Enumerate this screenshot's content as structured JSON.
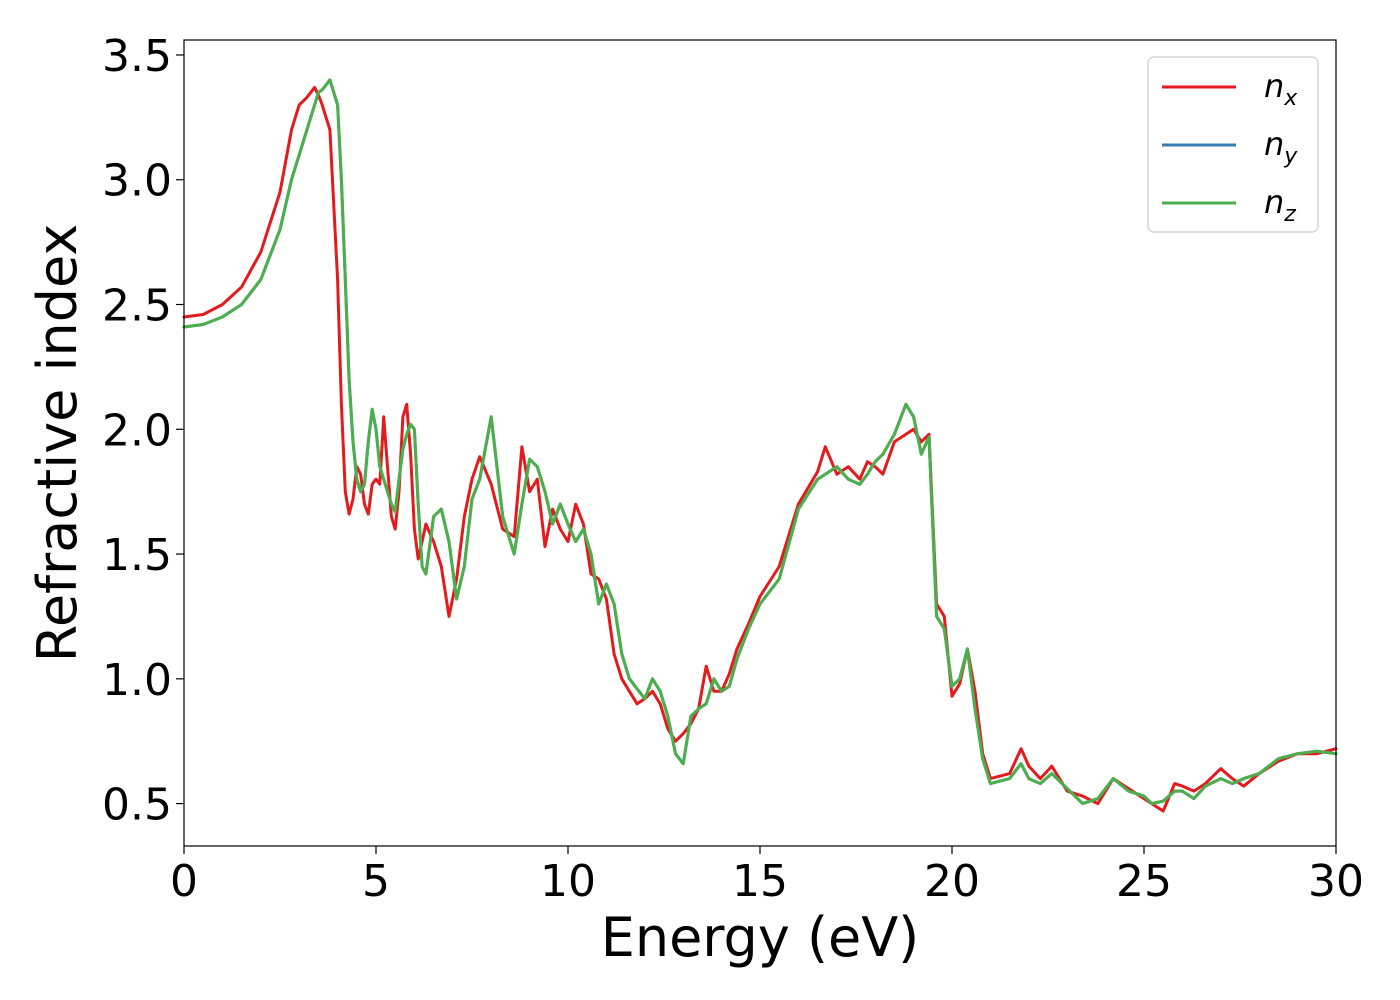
{
  "chart_data": {
    "type": "line",
    "title": "",
    "xlabel": "Energy (eV)",
    "ylabel": "Refractive index",
    "xlim": [
      0,
      30
    ],
    "ylim": [
      0.33,
      3.56
    ],
    "xticks": [
      0,
      5,
      10,
      15,
      20,
      25,
      30
    ],
    "xtick_labels": [
      "0",
      "5",
      "10",
      "15",
      "20",
      "25",
      "30"
    ],
    "yticks": [
      0.5,
      1.0,
      1.5,
      2.0,
      2.5,
      3.0,
      3.5
    ],
    "ytick_labels": [
      "0.5",
      "1.0",
      "1.5",
      "2.0",
      "2.5",
      "3.0",
      "3.5"
    ],
    "grid": false,
    "legend_position": "top-right",
    "series": [
      {
        "name": "n",
        "subscript": "x",
        "color": "#e41a1c",
        "x": [
          0,
          0.5,
          1,
          1.5,
          2,
          2.5,
          2.8,
          3,
          3.2,
          3.4,
          3.5,
          3.6,
          3.8,
          4,
          4.1,
          4.2,
          4.3,
          4.4,
          4.5,
          4.6,
          4.7,
          4.8,
          4.9,
          5,
          5.1,
          5.2,
          5.3,
          5.4,
          5.5,
          5.6,
          5.7,
          5.8,
          5.9,
          6,
          6.1,
          6.2,
          6.3,
          6.5,
          6.7,
          6.9,
          7.1,
          7.3,
          7.5,
          7.7,
          8,
          8.3,
          8.6,
          8.8,
          9,
          9.2,
          9.4,
          9.6,
          9.8,
          10,
          10.2,
          10.4,
          10.6,
          10.8,
          11,
          11.2,
          11.4,
          11.6,
          11.8,
          12,
          12.2,
          12.4,
          12.6,
          12.8,
          13,
          13.2,
          13.4,
          13.6,
          13.8,
          14,
          14.2,
          14.4,
          14.7,
          15,
          15.5,
          16,
          16.5,
          16.7,
          17,
          17.3,
          17.6,
          17.8,
          18,
          18.2,
          18.5,
          18.8,
          19,
          19.2,
          19.4,
          19.6,
          19.8,
          20,
          20.2,
          20.4,
          20.6,
          20.8,
          21,
          21.5,
          21.8,
          22,
          22.3,
          22.6,
          23,
          23.4,
          23.8,
          24.2,
          24.6,
          25,
          25.2,
          25.5,
          25.8,
          26,
          26.3,
          26.6,
          27,
          27.3,
          27.6,
          28,
          28.5,
          29,
          29.5,
          30
        ],
        "y": [
          2.45,
          2.46,
          2.5,
          2.57,
          2.71,
          2.95,
          3.2,
          3.3,
          3.33,
          3.37,
          3.34,
          3.3,
          3.2,
          2.6,
          2.1,
          1.75,
          1.66,
          1.72,
          1.85,
          1.82,
          1.7,
          1.66,
          1.78,
          1.8,
          1.78,
          2.05,
          1.85,
          1.65,
          1.6,
          1.75,
          2.05,
          2.1,
          1.9,
          1.6,
          1.48,
          1.55,
          1.62,
          1.55,
          1.45,
          1.25,
          1.4,
          1.65,
          1.8,
          1.89,
          1.78,
          1.6,
          1.57,
          1.93,
          1.75,
          1.8,
          1.53,
          1.68,
          1.6,
          1.55,
          1.7,
          1.62,
          1.42,
          1.4,
          1.32,
          1.1,
          1.0,
          0.95,
          0.9,
          0.92,
          0.95,
          0.9,
          0.8,
          0.75,
          0.78,
          0.82,
          0.88,
          1.05,
          0.95,
          0.95,
          1.02,
          1.12,
          1.22,
          1.33,
          1.45,
          1.7,
          1.83,
          1.93,
          1.82,
          1.85,
          1.8,
          1.87,
          1.85,
          1.82,
          1.95,
          1.98,
          2.0,
          1.95,
          1.98,
          1.3,
          1.25,
          0.93,
          0.98,
          1.12,
          0.95,
          0.7,
          0.6,
          0.62,
          0.72,
          0.65,
          0.6,
          0.65,
          0.55,
          0.53,
          0.5,
          0.6,
          0.56,
          0.52,
          0.5,
          0.47,
          0.58,
          0.57,
          0.55,
          0.58,
          0.64,
          0.6,
          0.57,
          0.62,
          0.67,
          0.7,
          0.7,
          0.72
        ]
      },
      {
        "name": "n",
        "subscript": "y",
        "color": "#377eb8",
        "x": [
          0,
          0.5,
          1,
          1.5,
          2,
          2.5,
          2.8,
          3,
          3.2,
          3.4,
          3.5,
          3.6,
          3.8,
          4,
          4.1,
          4.2,
          4.3,
          4.4,
          4.5,
          4.6,
          4.7,
          4.8,
          4.9,
          5,
          5.1,
          5.2,
          5.3,
          5.4,
          5.5,
          5.6,
          5.7,
          5.8,
          5.9,
          6,
          6.1,
          6.2,
          6.3,
          6.5,
          6.7,
          6.9,
          7.1,
          7.3,
          7.5,
          7.7,
          8,
          8.3,
          8.6,
          8.8,
          9,
          9.2,
          9.4,
          9.6,
          9.8,
          10,
          10.2,
          10.4,
          10.6,
          10.8,
          11,
          11.2,
          11.4,
          11.6,
          11.8,
          12,
          12.2,
          12.4,
          12.6,
          12.8,
          13,
          13.2,
          13.4,
          13.6,
          13.8,
          14,
          14.2,
          14.4,
          14.7,
          15,
          15.5,
          16,
          16.5,
          16.7,
          17,
          17.3,
          17.6,
          17.8,
          18,
          18.2,
          18.5,
          18.8,
          19,
          19.2,
          19.4,
          19.6,
          19.8,
          20,
          20.2,
          20.4,
          20.6,
          20.8,
          21,
          21.5,
          21.8,
          22,
          22.3,
          22.6,
          23,
          23.4,
          23.8,
          24.2,
          24.6,
          25,
          25.2,
          25.5,
          25.8,
          26,
          26.3,
          26.6,
          27,
          27.3,
          27.6,
          28,
          28.5,
          29,
          29.5,
          30
        ],
        "y": [
          2.41,
          2.42,
          2.45,
          2.5,
          2.6,
          2.8,
          3.0,
          3.1,
          3.2,
          3.3,
          3.35,
          3.36,
          3.4,
          3.3,
          3.0,
          2.6,
          2.2,
          1.95,
          1.8,
          1.75,
          1.78,
          1.95,
          2.08,
          2.0,
          1.85,
          1.8,
          1.75,
          1.7,
          1.67,
          1.8,
          1.92,
          1.98,
          2.02,
          2.0,
          1.7,
          1.45,
          1.42,
          1.65,
          1.68,
          1.55,
          1.32,
          1.45,
          1.72,
          1.8,
          2.05,
          1.65,
          1.5,
          1.7,
          1.88,
          1.85,
          1.75,
          1.62,
          1.7,
          1.62,
          1.55,
          1.6,
          1.5,
          1.3,
          1.38,
          1.3,
          1.1,
          1.0,
          0.96,
          0.92,
          1.0,
          0.95,
          0.85,
          0.7,
          0.66,
          0.85,
          0.88,
          0.9,
          1.0,
          0.95,
          0.97,
          1.08,
          1.2,
          1.3,
          1.4,
          1.68,
          1.8,
          1.82,
          1.85,
          1.8,
          1.78,
          1.82,
          1.87,
          1.9,
          1.98,
          2.1,
          2.05,
          1.9,
          1.97,
          1.25,
          1.2,
          0.97,
          1.0,
          1.12,
          0.88,
          0.68,
          0.58,
          0.6,
          0.66,
          0.6,
          0.58,
          0.62,
          0.56,
          0.5,
          0.52,
          0.6,
          0.55,
          0.53,
          0.5,
          0.51,
          0.55,
          0.55,
          0.52,
          0.57,
          0.6,
          0.58,
          0.6,
          0.62,
          0.68,
          0.7,
          0.71,
          0.7
        ]
      },
      {
        "name": "n",
        "subscript": "z",
        "color": "#4daf4a",
        "x": [
          0,
          0.5,
          1,
          1.5,
          2,
          2.5,
          2.8,
          3,
          3.2,
          3.4,
          3.5,
          3.6,
          3.8,
          4,
          4.1,
          4.2,
          4.3,
          4.4,
          4.5,
          4.6,
          4.7,
          4.8,
          4.9,
          5,
          5.1,
          5.2,
          5.3,
          5.4,
          5.5,
          5.6,
          5.7,
          5.8,
          5.9,
          6,
          6.1,
          6.2,
          6.3,
          6.5,
          6.7,
          6.9,
          7.1,
          7.3,
          7.5,
          7.7,
          8,
          8.3,
          8.6,
          8.8,
          9,
          9.2,
          9.4,
          9.6,
          9.8,
          10,
          10.2,
          10.4,
          10.6,
          10.8,
          11,
          11.2,
          11.4,
          11.6,
          11.8,
          12,
          12.2,
          12.4,
          12.6,
          12.8,
          13,
          13.2,
          13.4,
          13.6,
          13.8,
          14,
          14.2,
          14.4,
          14.7,
          15,
          15.5,
          16,
          16.5,
          16.7,
          17,
          17.3,
          17.6,
          17.8,
          18,
          18.2,
          18.5,
          18.8,
          19,
          19.2,
          19.4,
          19.6,
          19.8,
          20,
          20.2,
          20.4,
          20.6,
          20.8,
          21,
          21.5,
          21.8,
          22,
          22.3,
          22.6,
          23,
          23.4,
          23.8,
          24.2,
          24.6,
          25,
          25.2,
          25.5,
          25.8,
          26,
          26.3,
          26.6,
          27,
          27.3,
          27.6,
          28,
          28.5,
          29,
          29.5,
          30
        ],
        "y": [
          2.41,
          2.42,
          2.45,
          2.5,
          2.6,
          2.8,
          3.0,
          3.1,
          3.2,
          3.3,
          3.35,
          3.36,
          3.4,
          3.3,
          3.0,
          2.6,
          2.2,
          1.95,
          1.8,
          1.75,
          1.78,
          1.95,
          2.08,
          2.0,
          1.85,
          1.8,
          1.75,
          1.7,
          1.67,
          1.8,
          1.92,
          1.98,
          2.02,
          2.0,
          1.7,
          1.45,
          1.42,
          1.65,
          1.68,
          1.55,
          1.32,
          1.45,
          1.72,
          1.8,
          2.05,
          1.65,
          1.5,
          1.7,
          1.88,
          1.85,
          1.75,
          1.62,
          1.7,
          1.62,
          1.55,
          1.6,
          1.5,
          1.3,
          1.38,
          1.3,
          1.1,
          1.0,
          0.96,
          0.92,
          1.0,
          0.95,
          0.85,
          0.7,
          0.66,
          0.85,
          0.88,
          0.9,
          1.0,
          0.95,
          0.97,
          1.08,
          1.2,
          1.3,
          1.4,
          1.68,
          1.8,
          1.82,
          1.85,
          1.8,
          1.78,
          1.82,
          1.87,
          1.9,
          1.98,
          2.1,
          2.05,
          1.9,
          1.97,
          1.25,
          1.2,
          0.97,
          1.0,
          1.12,
          0.88,
          0.68,
          0.58,
          0.6,
          0.66,
          0.6,
          0.58,
          0.62,
          0.56,
          0.5,
          0.52,
          0.6,
          0.55,
          0.53,
          0.5,
          0.51,
          0.55,
          0.55,
          0.52,
          0.57,
          0.6,
          0.58,
          0.6,
          0.62,
          0.68,
          0.7,
          0.71,
          0.7
        ]
      }
    ]
  }
}
